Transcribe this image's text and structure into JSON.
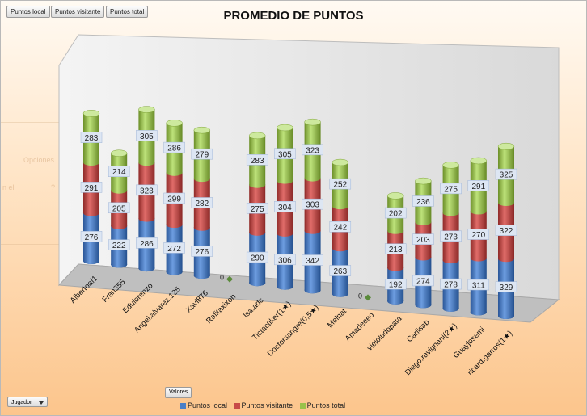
{
  "field_buttons": [
    "Puntos local",
    "Puntos visitante",
    "Puntos total"
  ],
  "ghost": {
    "option_label": "Opciones",
    "text_fragment": "n el",
    "help_mark": "?"
  },
  "valores_label": "Valores",
  "jugador_label": "Jugador",
  "colors": {
    "local": "#4a7fc8",
    "visitante": "#c84a48",
    "total": "#9ac24a",
    "label_bg": "#dde6f3"
  },
  "chart_data": {
    "type": "bar",
    "stacked": true,
    "style": "3d-cylinder",
    "title": "PROMEDIO DE PUNTOS",
    "categories": [
      "Albertoaf1",
      "Fran355",
      "Edulorenzo",
      "Angel.alvarez.125",
      "Xavi876",
      "Rafitaxixon",
      "Isa.adc",
      "Tictactiker(1★)",
      "Doctorsangre(0,5★)",
      "Melnat",
      "Amadeeeo",
      "viejoludopata",
      "Carlisab",
      "Diego.ravignani(2★)",
      "Guayjosemi",
      "ricard.garros(1★)"
    ],
    "series": [
      {
        "name": "Puntos local",
        "values": [
          276,
          222,
          286,
          272,
          276,
          0,
          290,
          306,
          342,
          263,
          0,
          192,
          274,
          278,
          311,
          329
        ]
      },
      {
        "name": "Puntos visitante",
        "values": [
          291,
          205,
          323,
          299,
          282,
          0,
          275,
          304,
          303,
          242,
          0,
          213,
          203,
          273,
          270,
          322
        ]
      },
      {
        "name": "Puntos total",
        "values": [
          283,
          214,
          305,
          286,
          279,
          0,
          283,
          305,
          323,
          252,
          0,
          202,
          236,
          275,
          291,
          325
        ]
      }
    ],
    "zero_labels": [
      "0",
      "0"
    ],
    "legend": "bottom",
    "grid": false
  }
}
